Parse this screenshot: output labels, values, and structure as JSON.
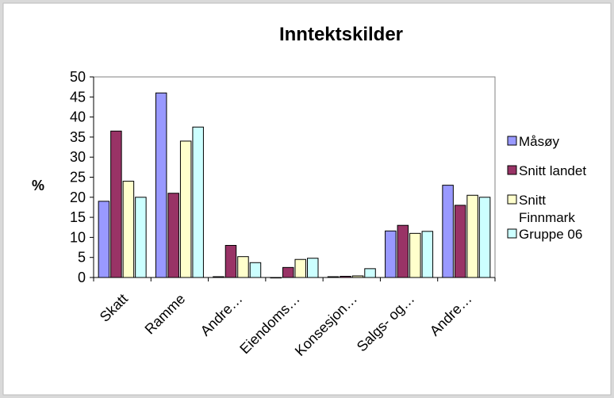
{
  "chart_data": {
    "type": "bar",
    "title": "Inntektskilder",
    "xlabel": "",
    "ylabel": "%",
    "ylim": [
      0,
      50
    ],
    "yticks": [
      0,
      5,
      10,
      15,
      20,
      25,
      30,
      35,
      40,
      45,
      50
    ],
    "categories": [
      "Skatt",
      "Ramme",
      "Andre…",
      "Eiendoms…",
      "Konsesjon…",
      "Salgs- og…",
      "Andre…"
    ],
    "series": [
      {
        "name": "Måsøy",
        "color": "#9999ff",
        "values": [
          19,
          46,
          0.2,
          0,
          0.2,
          11.6,
          23
        ]
      },
      {
        "name": "Snitt landet",
        "color": "#993366",
        "values": [
          36.5,
          21,
          8,
          2.5,
          0.3,
          13,
          18
        ]
      },
      {
        "name": "Snitt Finnmark",
        "color": "#ffffcc",
        "values": [
          24,
          34,
          5.2,
          4.5,
          0.4,
          11,
          20.5
        ]
      },
      {
        "name": "Gruppe 06",
        "color": "#ccffff",
        "values": [
          20,
          37.5,
          3.7,
          4.8,
          2.2,
          11.5,
          20
        ]
      }
    ],
    "grid": false,
    "legend_position": "right"
  }
}
